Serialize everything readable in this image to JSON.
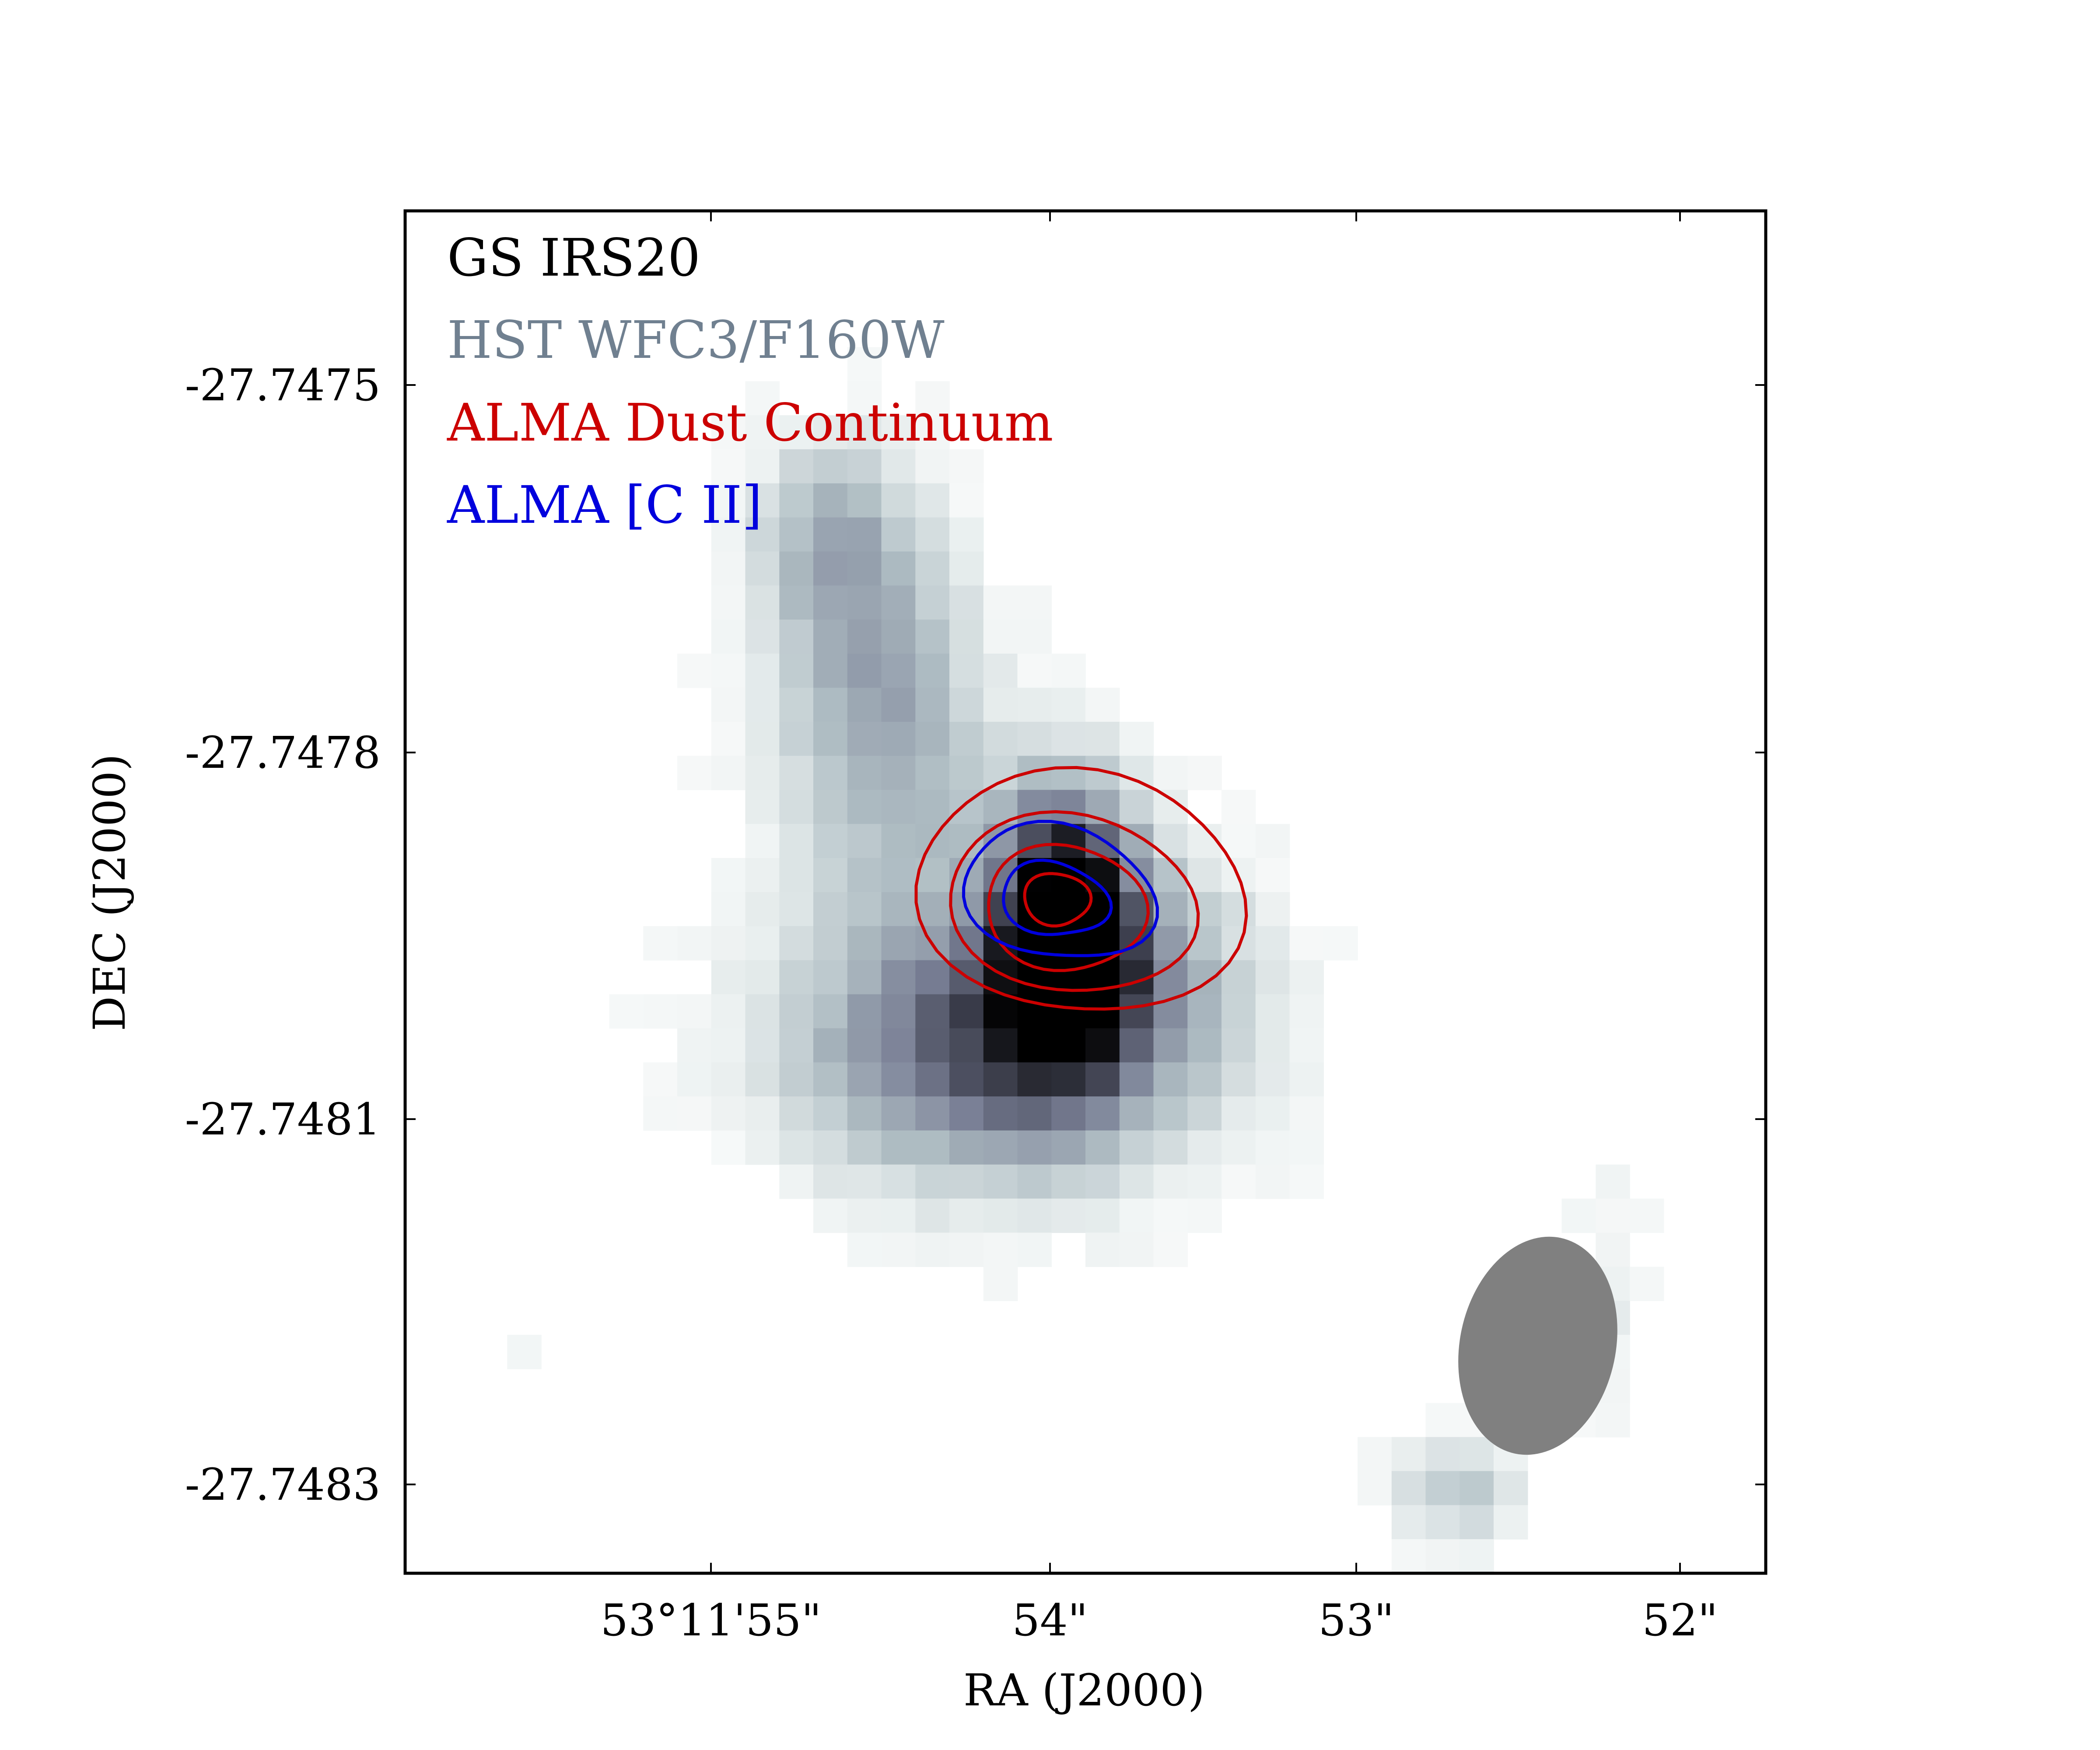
{
  "chart_data": {
    "type": "heatmap",
    "title": "",
    "xlabel": "RA (J2000)",
    "ylabel": "DEC (J2000)",
    "x_ticks": [
      "53°11'55\"",
      "54\"",
      "53\"",
      "52\""
    ],
    "y_ticks": [
      "-27.7475",
      "-27.7478",
      "-27.7481",
      "-27.7483"
    ],
    "legend": [
      {
        "label": "GS IRS20",
        "color": "#000000"
      },
      {
        "label": "HST WFC3/F160W",
        "color": "#708090"
      },
      {
        "label": "ALMA Dust Continuum",
        "color": "#cc0000"
      },
      {
        "label": "ALMA [C II]",
        "color": "#0000dd"
      }
    ],
    "image": {
      "band": "HST WFC3/F160W",
      "colormap": "bone_r (white to slate-grey to black)",
      "peak_ra": "53°11'54.0\"",
      "peak_dec": -27.74796
    },
    "series": [
      {
        "name": "ALMA Dust Continuum",
        "color": "#cc0000",
        "contour_levels": 4
      },
      {
        "name": "ALMA [C II]",
        "color": "#0000dd",
        "contour_levels": 2
      }
    ],
    "beam": {
      "color": "#808080"
    },
    "grid": false,
    "legend_placement": "top-left"
  }
}
